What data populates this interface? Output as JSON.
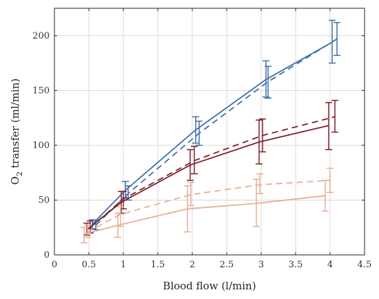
{
  "chart_data": {
    "type": "line",
    "title": "",
    "xlabel": "Blood flow (l/min)",
    "ylabel_main": "O",
    "ylabel_sub": "2",
    "ylabel_rest": " transfer (ml/min)",
    "xlim": [
      0,
      4.5
    ],
    "ylim": [
      0,
      225
    ],
    "xticks": [
      "0",
      "0.5",
      "1",
      "1.5",
      "2",
      "2.5",
      "3",
      "3.5",
      "4",
      "4.5"
    ],
    "yticks": [
      "0",
      "50",
      "100",
      "150",
      "200"
    ],
    "grid": true,
    "series": [
      {
        "color": "#3f6fa8",
        "dashed": false,
        "points": [
          {
            "x": 0.55,
            "y": 28,
            "lo": 24,
            "hi": 32
          },
          {
            "x": 1.03,
            "y": 59,
            "lo": 52,
            "hi": 67
          },
          {
            "x": 2.05,
            "y": 114,
            "lo": 102,
            "hi": 126
          },
          {
            "x": 3.07,
            "y": 160,
            "lo": 144,
            "hi": 177
          },
          {
            "x": 4.03,
            "y": 194,
            "lo": 175,
            "hi": 214
          }
        ]
      },
      {
        "color": "#3f6fa8",
        "dashed": true,
        "points": [
          {
            "x": 0.6,
            "y": 27,
            "lo": 23,
            "hi": 32
          },
          {
            "x": 1.07,
            "y": 56,
            "lo": 50,
            "hi": 63
          },
          {
            "x": 2.1,
            "y": 111,
            "lo": 100,
            "hi": 122
          },
          {
            "x": 3.1,
            "y": 158,
            "lo": 143,
            "hi": 172
          },
          {
            "x": 4.1,
            "y": 197,
            "lo": 182,
            "hi": 212
          }
        ]
      },
      {
        "color": "#7d1f2a",
        "dashed": false,
        "points": [
          {
            "x": 0.47,
            "y": 23,
            "lo": 18,
            "hi": 29
          },
          {
            "x": 0.97,
            "y": 48,
            "lo": 38,
            "hi": 58
          },
          {
            "x": 1.97,
            "y": 82,
            "lo": 68,
            "hi": 96
          },
          {
            "x": 2.97,
            "y": 103,
            "lo": 83,
            "hi": 123
          },
          {
            "x": 3.98,
            "y": 118,
            "lo": 96,
            "hi": 139
          }
        ]
      },
      {
        "color": "#7d1f2a",
        "dashed": true,
        "points": [
          {
            "x": 0.52,
            "y": 25,
            "lo": 20,
            "hi": 31
          },
          {
            "x": 1.0,
            "y": 51,
            "lo": 42,
            "hi": 58
          },
          {
            "x": 2.03,
            "y": 86,
            "lo": 74,
            "hi": 99
          },
          {
            "x": 3.02,
            "y": 109,
            "lo": 94,
            "hi": 124
          },
          {
            "x": 4.07,
            "y": 126,
            "lo": 112,
            "hi": 141
          }
        ]
      },
      {
        "color": "#e8ad94",
        "dashed": false,
        "points": [
          {
            "x": 0.43,
            "y": 19,
            "lo": 11,
            "hi": 25
          },
          {
            "x": 0.92,
            "y": 27,
            "lo": 16,
            "hi": 38
          },
          {
            "x": 1.93,
            "y": 42,
            "lo": 21,
            "hi": 63
          },
          {
            "x": 2.93,
            "y": 47,
            "lo": 26,
            "hi": 69
          },
          {
            "x": 3.93,
            "y": 54,
            "lo": 40,
            "hi": 68
          }
        ]
      },
      {
        "color": "#e8ad94",
        "dashed": true,
        "points": [
          {
            "x": 0.48,
            "y": 21,
            "lo": 16,
            "hi": 27
          },
          {
            "x": 0.96,
            "y": 37,
            "lo": 26,
            "hi": 44
          },
          {
            "x": 1.98,
            "y": 55,
            "lo": 45,
            "hi": 66
          },
          {
            "x": 2.98,
            "y": 64,
            "lo": 56,
            "hi": 74
          },
          {
            "x": 4.0,
            "y": 68,
            "lo": 57,
            "hi": 79
          }
        ]
      }
    ]
  }
}
